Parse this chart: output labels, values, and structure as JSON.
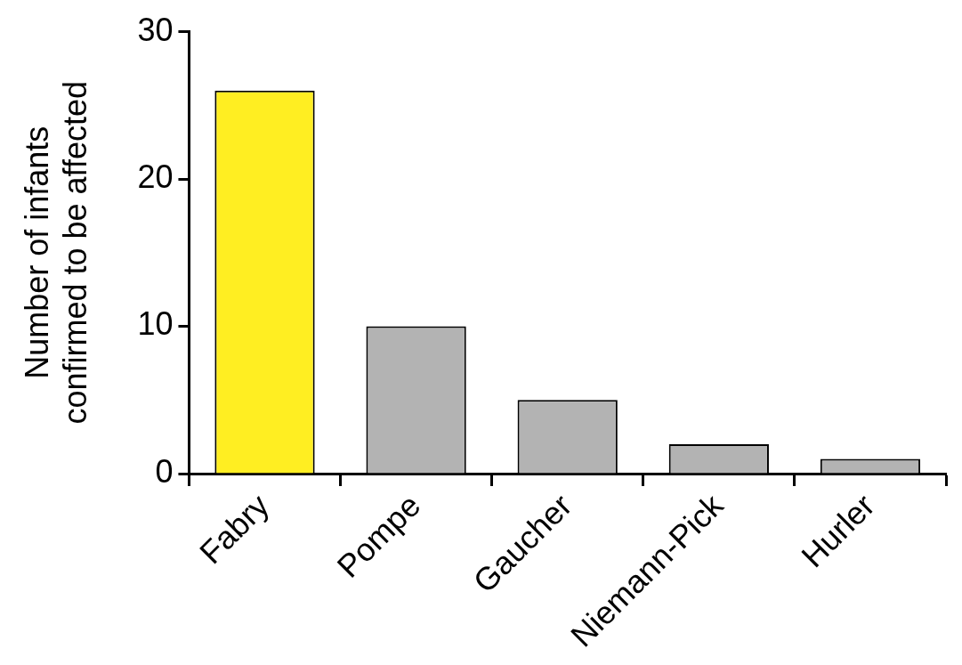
{
  "chart_data": {
    "type": "bar",
    "ylabel": "Number of infants confirmed to be affected",
    "categories": [
      "Fabry",
      "Pompe",
      "Gaucher",
      "Niemann-Pick",
      "Hurler"
    ],
    "values": [
      26,
      10,
      5,
      2,
      1
    ],
    "colors": [
      "#ffee22",
      "#b3b3b3",
      "#b3b3b3",
      "#b3b3b3",
      "#b3b3b3"
    ],
    "ylim": [
      0,
      30
    ],
    "yticks": [
      0,
      10,
      20,
      30
    ],
    "grid": false,
    "legend": false
  }
}
